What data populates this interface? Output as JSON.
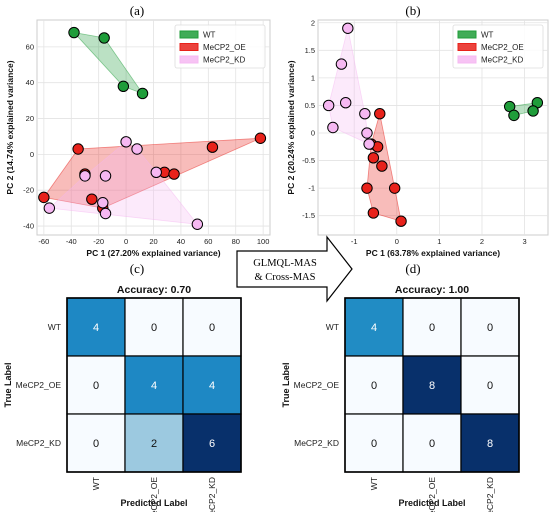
{
  "panel_labels": {
    "a": "(a)",
    "b": "(b)",
    "c": "(c)",
    "d": "(d)"
  },
  "arrow_text": {
    "line1": "GLMQL-MAS",
    "line2": "& Cross-MAS"
  },
  "colors": {
    "WT": "#1f9d3a",
    "MeCP2_OE": "#e8221b",
    "MeCP2_KD": "#f6b8f2",
    "matrix_low": "#f7fbff",
    "matrix_mid_light": "#9dcae0",
    "matrix_mid": "#1e88c4",
    "matrix_high": "#08306b"
  },
  "chart_data": [
    {
      "id": "a",
      "type": "scatter",
      "title": "",
      "xlabel": "PC 1 (27.20% explained variance)",
      "ylabel": "PC 2 (14.74% explained variance)",
      "xlim": [
        -65,
        105
      ],
      "ylim": [
        -45,
        75
      ],
      "xticks": [
        -60,
        -40,
        -20,
        0,
        20,
        40,
        60,
        80,
        100
      ],
      "yticks": [
        -40,
        -20,
        0,
        20,
        40,
        60
      ],
      "grid": true,
      "legend_position": "top-right",
      "series": [
        {
          "name": "WT",
          "color": "#1f9d3a",
          "x": [
            -38,
            -16,
            12,
            -2
          ],
          "y": [
            68,
            65,
            34,
            38
          ]
        },
        {
          "name": "MeCP2_OE",
          "color": "#e8221b",
          "x": [
            -35,
            -30,
            -60,
            -25,
            -17,
            28,
            35,
            63,
            98
          ],
          "y": [
            3,
            -11,
            -24,
            -25,
            -30,
            -10,
            -11,
            4,
            9
          ]
        },
        {
          "name": "MeCP2_KD",
          "color": "#f6b8f2",
          "x": [
            -30,
            -15,
            -17,
            -15,
            0,
            8,
            22,
            -56,
            52
          ],
          "y": [
            -12,
            -12,
            -27,
            -33,
            7,
            3,
            -10,
            -30,
            -39
          ]
        }
      ]
    },
    {
      "id": "b",
      "type": "scatter",
      "title": "",
      "xlabel": "PC 1 (63.78% explained variance)",
      "ylabel": "PC 2 (20.24% explained variance)",
      "xlim": [
        -1.85,
        3.55
      ],
      "ylim": [
        -1.85,
        2.05
      ],
      "xticks": [
        -1,
        0,
        1,
        2,
        3
      ],
      "yticks": [
        -1.5,
        -1.0,
        -0.5,
        0.0,
        0.5,
        1.0,
        1.5,
        2.0
      ],
      "grid": true,
      "legend_position": "top-right",
      "series": [
        {
          "name": "WT",
          "color": "#1f9d3a",
          "x": [
            2.65,
            2.75,
            3.3,
            3.2
          ],
          "y": [
            0.48,
            0.32,
            0.55,
            0.4
          ]
        },
        {
          "name": "MeCP2_OE",
          "color": "#e8221b",
          "x": [
            -0.4,
            -0.6,
            -0.45,
            -0.55,
            -0.35,
            -0.7,
            -0.55,
            -0.05,
            0.1
          ],
          "y": [
            0.35,
            -0.2,
            -0.25,
            -0.45,
            -0.6,
            -1.0,
            -1.45,
            -1.0,
            -1.6
          ]
        },
        {
          "name": "MeCP2_KD",
          "color": "#f6b8f2",
          "x": [
            -1.15,
            -1.3,
            -1.2,
            -1.6,
            -1.5,
            -0.7,
            -0.65,
            -0.75
          ],
          "y": [
            1.9,
            1.25,
            0.55,
            0.5,
            0.1,
            0.0,
            -0.2,
            0.35
          ]
        }
      ]
    },
    {
      "id": "c",
      "type": "heatmap",
      "title": "Accuracy: 0.70",
      "xlabel": "Predicted Label",
      "ylabel": "True Label",
      "labels": [
        "WT",
        "MeCP2_OE",
        "MeCP2_KD"
      ],
      "matrix": [
        [
          4,
          0,
          0
        ],
        [
          0,
          4,
          4
        ],
        [
          0,
          2,
          6
        ]
      ]
    },
    {
      "id": "d",
      "type": "heatmap",
      "title": "Accuracy: 1.00",
      "xlabel": "Predicted Label",
      "ylabel": "True Label",
      "labels": [
        "WT",
        "MeCP2_OE",
        "MeCP2_KD"
      ],
      "matrix": [
        [
          4,
          0,
          0
        ],
        [
          0,
          8,
          0
        ],
        [
          0,
          0,
          8
        ]
      ]
    }
  ]
}
